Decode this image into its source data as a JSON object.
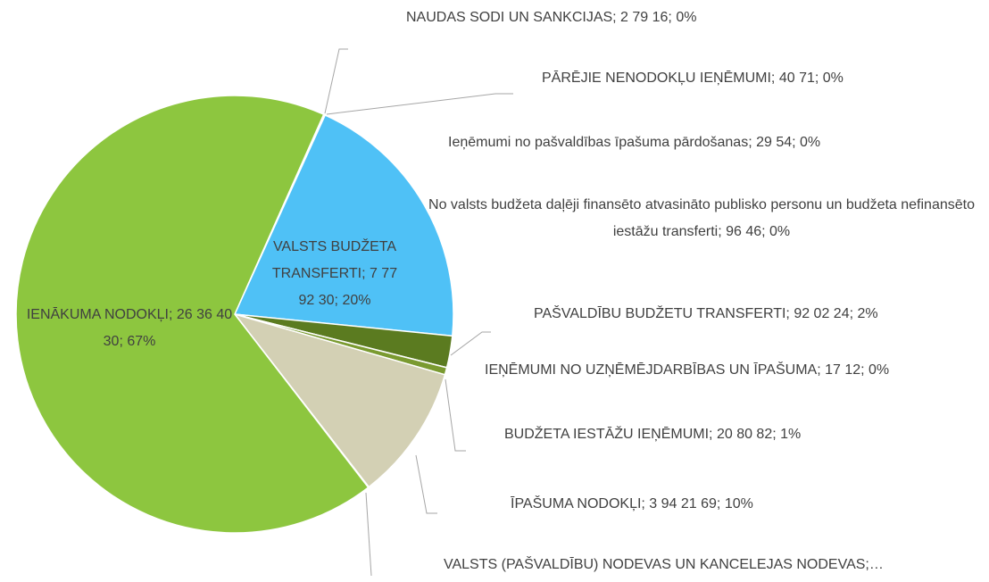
{
  "chart_data": {
    "type": "pie",
    "values": [
      27916,
      4071,
      2954,
      9646,
      7779230,
      920224,
      1712,
      208082,
      3942169,
      20000,
      26364030
    ],
    "value_labels": [
      "NAUDAS SODI UN SANKCIJAS; 2 79 16; 0%",
      "PĀRĒJIE NENODOKĻU IEŅĒMUMI; 40 71; 0%",
      "Ieņēmumi no pašvaldības īpašuma pārdošanas; 29 54; 0%",
      "No valsts budžeta daļēji finansēto atvasināto publisko personu un budžeta nefinansēto iestāžu transferti; 96 46; 0%",
      "VALSTS BUDŽETA TRANSFERTI; 7 77 92 30; 20%",
      "PAŠVALDĪBU BUDŽETU TRANSFERTI; 92 02 24; 2%",
      "IEŅĒMUMI NO UZŅĒMĒJDARBĪBAS UN ĪPAŠUMA; 17 12; 0%",
      "BUDŽETA IESTĀŽU IEŅĒMUMI; 20 80 82; 1%",
      "ĪPAŠUMA NODOKĻI; 3 94 21 69; 10%",
      "VALSTS (PAŠVALDĪBU) NODEVAS UN KANCELEJAS NODEVAS;…",
      "IENĀKUMA NODOKĻI; 26 36 40 30; 67%"
    ],
    "colors": [
      "#a9a9a9",
      "#bdbdbd",
      "#9e9e9e",
      "#cfcfcf",
      "#4fc1f6",
      "#5b7b20",
      "#3f5f14",
      "#7a9a30",
      "#d3d0b4",
      "#c8c8c8",
      "#8dc63f"
    ]
  }
}
